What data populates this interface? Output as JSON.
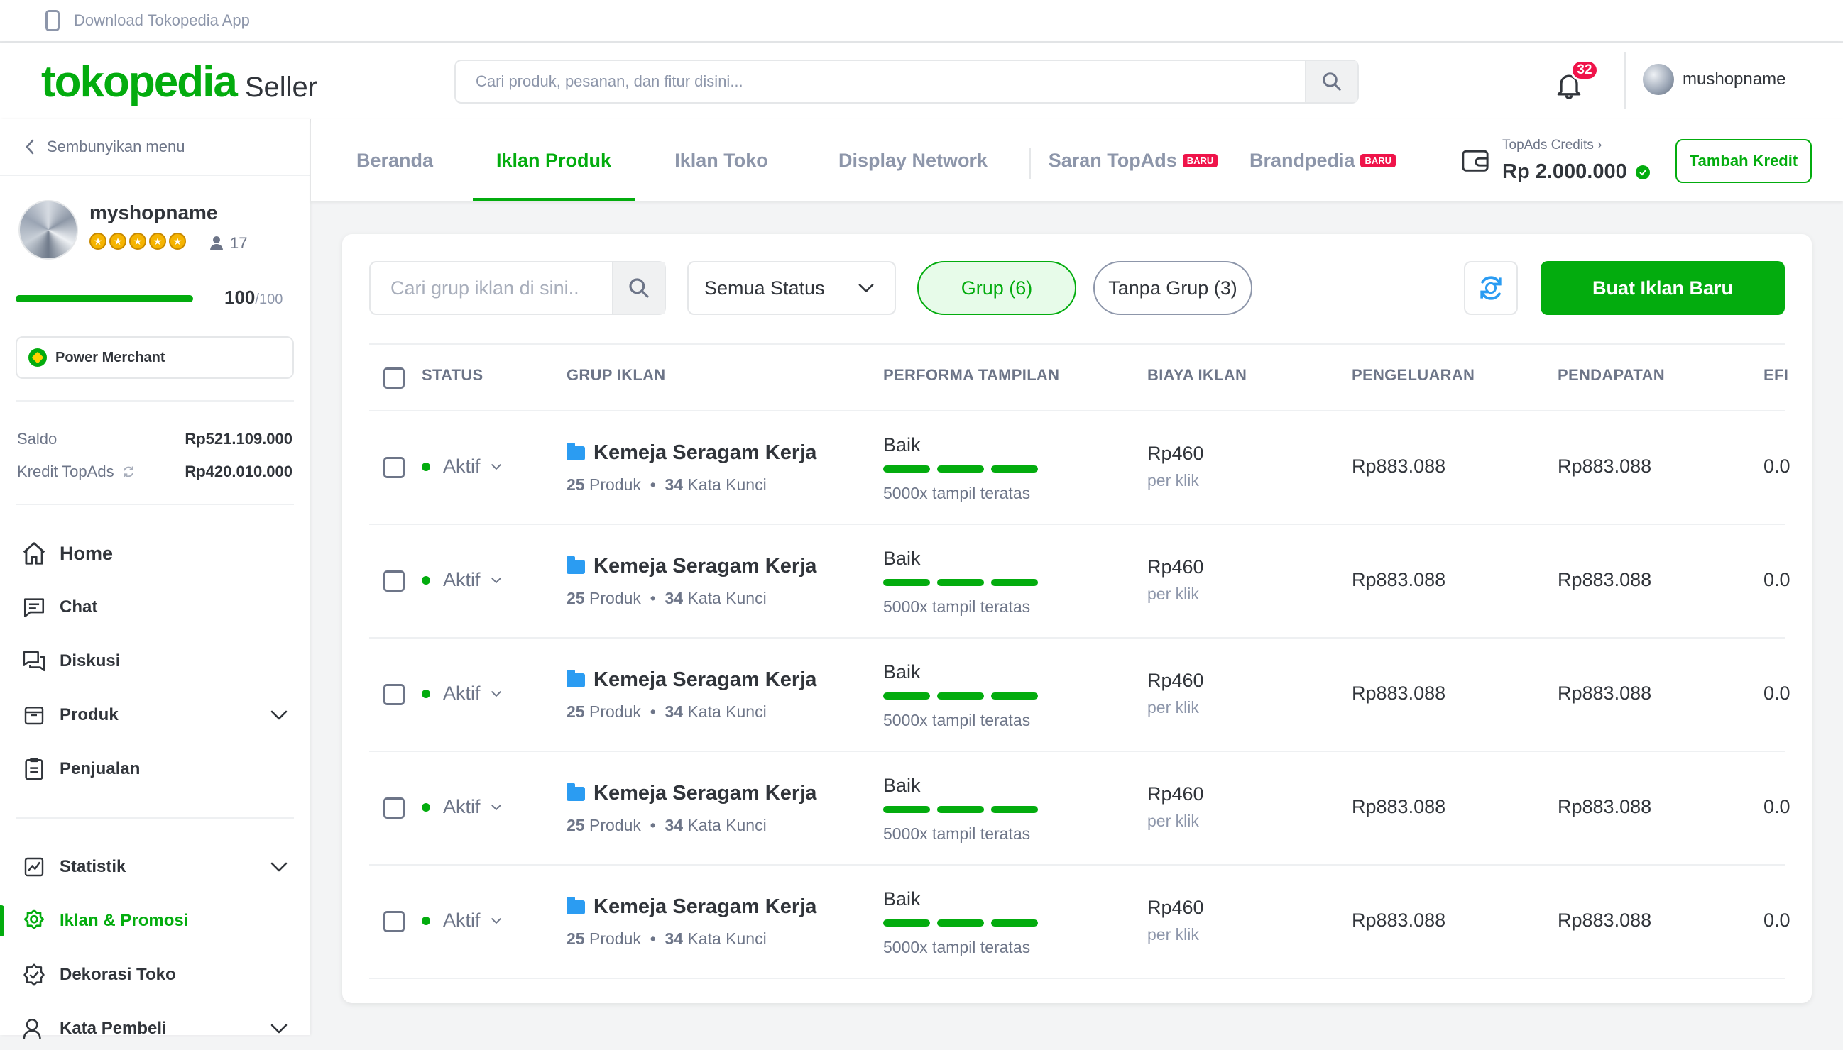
{
  "topbar": {
    "download_app": "Download Tokopedia App"
  },
  "header": {
    "brand": "tokopedia",
    "product": "Seller",
    "search_placeholder": "Cari produk, pesanan, dan fitur disini...",
    "notification_count": "32",
    "username": "mushopname"
  },
  "sidebar": {
    "hide_menu": "Sembunyikan menu",
    "shop_name": "myshopname",
    "rating_stars": 5,
    "followers": "17",
    "score": "100",
    "score_max": "/100",
    "score_fraction": 1.0,
    "merchant_badge": "Power Merchant",
    "saldo_label": "Saldo",
    "saldo_value": "Rp521.109.000",
    "kredit_label": "Kredit TopAds",
    "kredit_value": "Rp420.010.000",
    "nav": {
      "home": "Home",
      "chat": "Chat",
      "diskusi": "Diskusi",
      "produk": "Produk",
      "penjualan": "Penjualan",
      "statistik": "Statistik",
      "iklan": "Iklan & Promosi",
      "dekorasi": "Dekorasi Toko",
      "kata": "Kata Pembeli"
    }
  },
  "tabs": {
    "beranda": "Beranda",
    "iklan_produk": "Iklan Produk",
    "iklan_toko": "Iklan Toko",
    "display_network": "Display Network",
    "saran": "Saran TopAds",
    "brandpedia": "Brandpedia",
    "baru": "BARU",
    "credits_label": "TopAds Credits",
    "credits_value": "Rp 2.000.000",
    "tambah_kredit": "Tambah Kredit"
  },
  "toolbar": {
    "search_placeholder": "Cari grup iklan di sini..",
    "status_select": "Semua Status",
    "chip_grup": "Grup (6)",
    "chip_tanpa": "Tanpa Grup (3)",
    "new_button": "Buat Iklan Baru"
  },
  "table": {
    "headers": {
      "status": "STATUS",
      "grup": "GRUP IKLAN",
      "performa": "PERFORMA TAMPILAN",
      "biaya": "BIAYA IKLAN",
      "pengeluaran": "PENGELUARAN",
      "pendapatan": "PENDAPATAN",
      "efi": "EFI"
    },
    "rows": [
      {
        "status": "Aktif",
        "name": "Kemeja Seragam Kerja",
        "produk_count": "25",
        "produk_label": "Produk",
        "sep": "•",
        "kata_count": "34",
        "kata_label": "Kata Kunci",
        "perf": "Baik",
        "perf_note": "5000x tampil teratas",
        "cost": "Rp460",
        "cost_unit": "per klik",
        "spend": "Rp883.088",
        "income": "Rp883.088",
        "eff": "0.0"
      },
      {
        "status": "Aktif",
        "name": "Kemeja Seragam Kerja",
        "produk_count": "25",
        "produk_label": "Produk",
        "sep": "•",
        "kata_count": "34",
        "kata_label": "Kata Kunci",
        "perf": "Baik",
        "perf_note": "5000x tampil teratas",
        "cost": "Rp460",
        "cost_unit": "per klik",
        "spend": "Rp883.088",
        "income": "Rp883.088",
        "eff": "0.0"
      },
      {
        "status": "Aktif",
        "name": "Kemeja Seragam Kerja",
        "produk_count": "25",
        "produk_label": "Produk",
        "sep": "•",
        "kata_count": "34",
        "kata_label": "Kata Kunci",
        "perf": "Baik",
        "perf_note": "5000x tampil teratas",
        "cost": "Rp460",
        "cost_unit": "per klik",
        "spend": "Rp883.088",
        "income": "Rp883.088",
        "eff": "0.0"
      },
      {
        "status": "Aktif",
        "name": "Kemeja Seragam Kerja",
        "produk_count": "25",
        "produk_label": "Produk",
        "sep": "•",
        "kata_count": "34",
        "kata_label": "Kata Kunci",
        "perf": "Baik",
        "perf_note": "5000x tampil teratas",
        "cost": "Rp460",
        "cost_unit": "per klik",
        "spend": "Rp883.088",
        "income": "Rp883.088",
        "eff": "0.0"
      },
      {
        "status": "Aktif",
        "name": "Kemeja Seragam Kerja",
        "produk_count": "25",
        "produk_label": "Produk",
        "sep": "•",
        "kata_count": "34",
        "kata_label": "Kata Kunci",
        "perf": "Baik",
        "perf_note": "5000x tampil teratas",
        "cost": "Rp460",
        "cost_unit": "per klik",
        "spend": "Rp883.088",
        "income": "Rp883.088",
        "eff": "0.0"
      }
    ]
  },
  "colors": {
    "brand_green": "#03ac0e",
    "badge_red": "#ef144a",
    "folder_blue": "#2b9cf2"
  },
  "icons": [
    "phone-icon",
    "search-icon",
    "bell-icon",
    "chevron-left-icon",
    "user-icon",
    "home-icon",
    "chat-icon",
    "discussion-icon",
    "product-icon",
    "sales-icon",
    "stats-icon",
    "promo-icon",
    "decoration-icon",
    "review-icon",
    "wallet-icon",
    "refresh-icon",
    "chevron-down-icon",
    "folder-icon"
  ]
}
